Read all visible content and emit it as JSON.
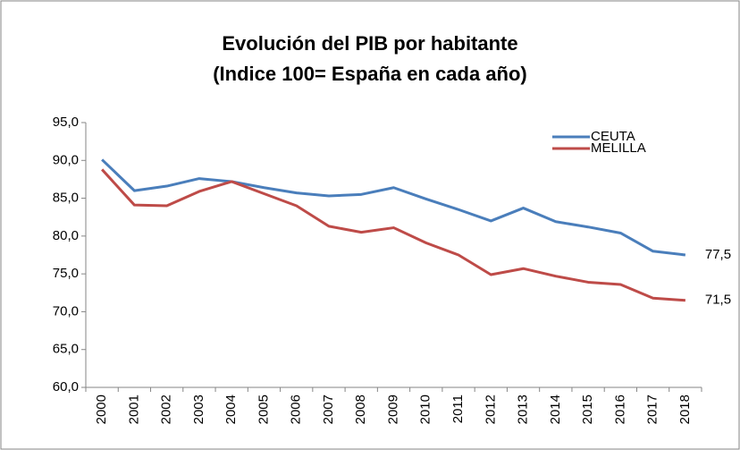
{
  "chart_data": {
    "type": "line",
    "title": [
      "Evolución del PIB por habitante",
      "(Indice 100= España en cada año)"
    ],
    "categories": [
      "2000",
      "2001",
      "2002",
      "2003",
      "2004",
      "2005",
      "2006",
      "2007",
      "2008",
      "2009",
      "2010",
      "2011",
      "2012",
      "2013",
      "2014",
      "2015",
      "2016",
      "2017",
      "2018"
    ],
    "series": [
      {
        "name": "CEUTA",
        "color": "#4a7ebb",
        "values": [
          90.1,
          86.0,
          86.6,
          87.6,
          87.2,
          86.4,
          85.7,
          85.3,
          85.5,
          86.4,
          84.9,
          83.5,
          82.0,
          83.7,
          81.9,
          81.2,
          80.4,
          78.0,
          77.5
        ],
        "value_labels": [
          null,
          null,
          null,
          null,
          null,
          null,
          null,
          null,
          null,
          null,
          null,
          null,
          null,
          null,
          null,
          null,
          null,
          null,
          "77,5"
        ]
      },
      {
        "name": "MELILLA",
        "color": "#be4b48",
        "values": [
          88.8,
          84.1,
          84.0,
          85.9,
          87.2,
          85.6,
          84.0,
          81.3,
          80.5,
          81.1,
          79.1,
          77.5,
          74.9,
          75.7,
          74.7,
          73.9,
          73.6,
          71.8,
          71.5
        ],
        "value_labels": [
          null,
          null,
          null,
          null,
          null,
          null,
          null,
          null,
          null,
          null,
          null,
          null,
          null,
          null,
          null,
          null,
          null,
          null,
          "71,5"
        ]
      }
    ],
    "ylim": [
      60,
      95
    ],
    "yticks": [
      {
        "value": 60,
        "label": "60,0"
      },
      {
        "value": 65,
        "label": "65,0"
      },
      {
        "value": 70,
        "label": "70,0"
      },
      {
        "value": 75,
        "label": "75,0"
      },
      {
        "value": 80,
        "label": "80,0"
      },
      {
        "value": 85,
        "label": "85,0"
      },
      {
        "value": 90,
        "label": "90,0"
      },
      {
        "value": 95,
        "label": "95,0"
      }
    ],
    "grid": false,
    "legend": "top-right"
  }
}
